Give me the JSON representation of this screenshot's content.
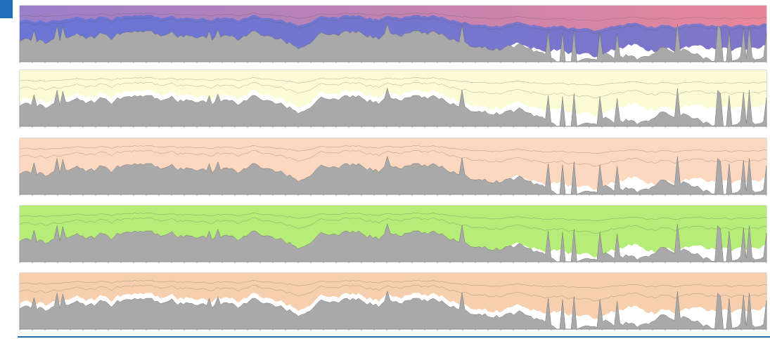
{
  "panels": [
    {
      "colors": [
        "#9a7fc9",
        "#e9879a"
      ]
    },
    {
      "colors": [
        "#fbfbd6"
      ]
    },
    {
      "colors": [
        "#fbd8bf"
      ]
    },
    {
      "colors": [
        "#b6ec78"
      ]
    },
    {
      "colors": [
        "#f5cfae"
      ]
    }
  ]
}
